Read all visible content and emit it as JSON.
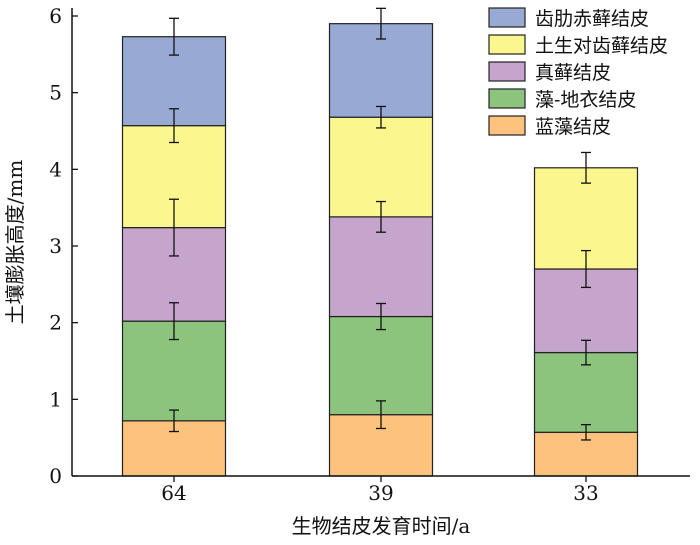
{
  "chart_data": {
    "type": "bar",
    "stacked": true,
    "categories": [
      "64",
      "39",
      "33"
    ],
    "xlabel": "生物结皮发育时间/a",
    "ylabel": "土壤膨胀高度/mm",
    "ylim": [
      0,
      6
    ],
    "yticks": [
      "0",
      "1",
      "2",
      "3",
      "4",
      "5",
      "6"
    ],
    "grid": false,
    "legend_position": "top-right",
    "series": [
      {
        "name": "蓝藻结皮",
        "color": "#FCC27E",
        "values": [
          0.72,
          0.8,
          0.57
        ],
        "errors": [
          0.14,
          0.18,
          0.1
        ]
      },
      {
        "name": "藻-地衣结皮",
        "color": "#8CC37D",
        "values": [
          1.3,
          1.28,
          1.04
        ],
        "errors": [
          0.24,
          0.17,
          0.16
        ]
      },
      {
        "name": "真藓结皮",
        "color": "#C5A5CB",
        "values": [
          1.22,
          1.3,
          1.09
        ],
        "errors": [
          0.37,
          0.2,
          0.24
        ]
      },
      {
        "name": "土生对齿藓结皮",
        "color": "#FCF68F",
        "values": [
          1.33,
          1.3,
          1.32
        ],
        "errors": [
          0.22,
          0.14,
          0.2
        ]
      },
      {
        "name": "齿肋赤藓结皮",
        "color": "#98A9D4",
        "values": [
          1.16,
          1.22,
          0
        ],
        "errors": [
          0.24,
          0.2,
          0
        ]
      }
    ]
  }
}
